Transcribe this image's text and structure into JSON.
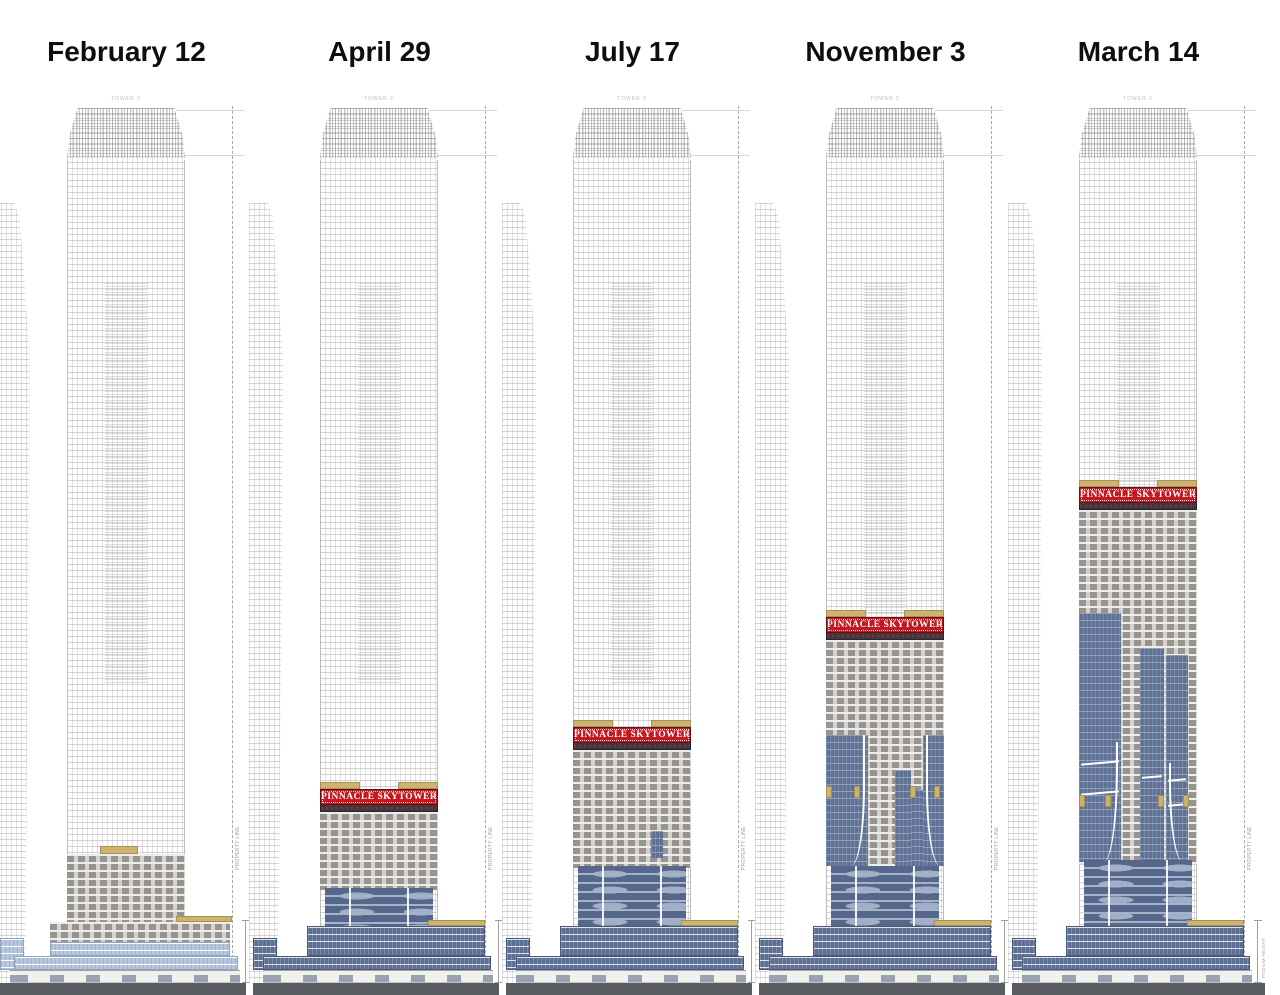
{
  "drawing": {
    "tower_label": "TOWER 2",
    "banner_text": "PINNACLE SKYTOWER",
    "property_line_label": "PROPERTY LINE",
    "podium_height_label": "PODIUM HEIGHT"
  },
  "panels": [
    {
      "date": "February 12",
      "banner_visible": false
    },
    {
      "date": "April 29",
      "banner_visible": true
    },
    {
      "date": "July 17",
      "banner_visible": true
    },
    {
      "date": "November 3",
      "banner_visible": true
    },
    {
      "date": "March 14",
      "banner_visible": true
    }
  ],
  "colors": {
    "banner_red": "#c2181f",
    "banner_band_gray": "#373b42",
    "cladding_blue": "#5f7296",
    "podium_light_blue": "#b7c8de",
    "structure_gray": "#c3c1bd",
    "accent_tan": "#cdb36f",
    "ground_gray": "#5a5d61"
  }
}
